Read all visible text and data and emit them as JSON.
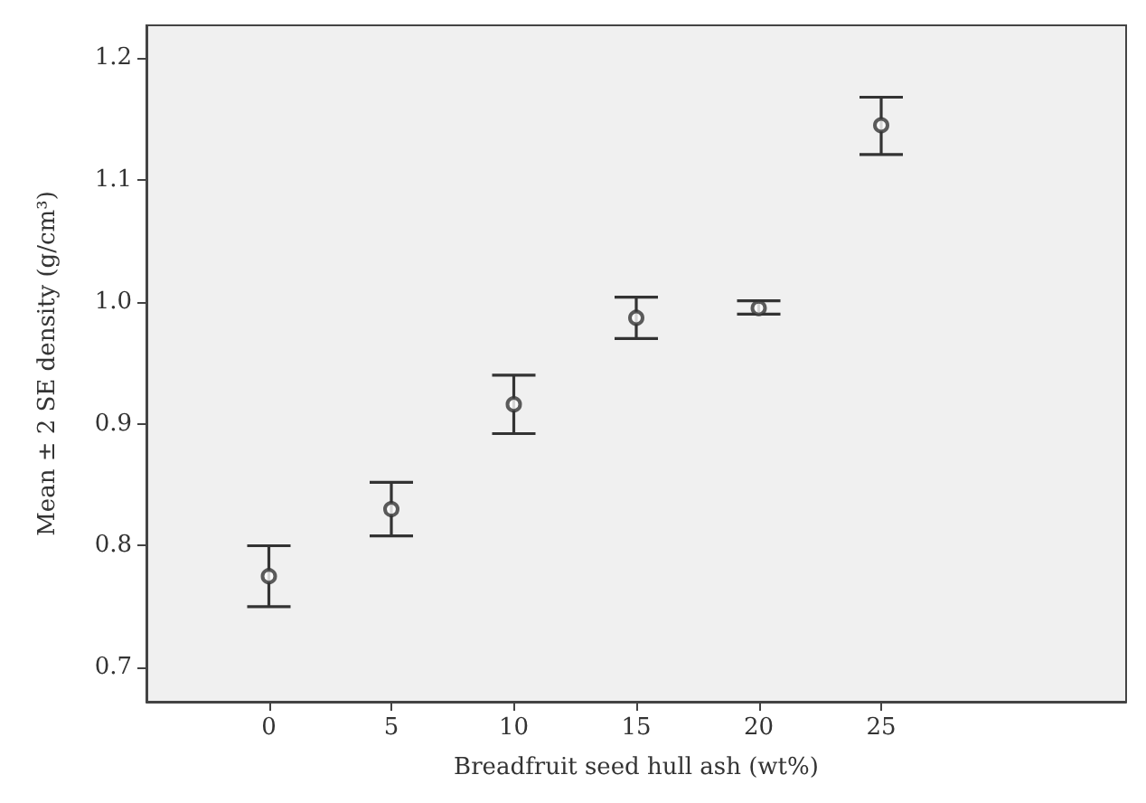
{
  "chart_data": {
    "type": "scatter",
    "xlabel": "Breadfruit seed hull ash (wt%)",
    "ylabel": "Mean ± 2 SE density (g/cm³)",
    "x": [
      0,
      5,
      10,
      15,
      20,
      25
    ],
    "series": [
      {
        "color": "#333333",
        "values": [
          0.775,
          0.83,
          0.916,
          0.987,
          0.995,
          1.145
        ],
        "errors": [
          [
            0.75,
            0.8
          ],
          [
            0.808,
            0.852
          ],
          [
            0.892,
            0.94
          ],
          [
            0.97,
            1.004
          ],
          [
            0.99,
            1.001
          ],
          [
            1.121,
            1.168
          ]
        ]
      }
    ],
    "xlim": [
      -5,
      35
    ],
    "xticks": [
      0,
      5,
      10,
      15,
      20,
      25
    ],
    "ylim": [
      0.672,
      1.227
    ],
    "yticks": [
      {
        "value": 0.7,
        "label": "0.7"
      },
      {
        "value": 0.8,
        "label": "0.8"
      },
      {
        "value": 0.9,
        "label": "0.9"
      },
      {
        "value": 1,
        "label": "1.0"
      },
      {
        "value": 1.1,
        "label": "1.1"
      },
      {
        "value": 1.2,
        "label": "1.2"
      }
    ],
    "grid": false,
    "marker": "circle"
  }
}
